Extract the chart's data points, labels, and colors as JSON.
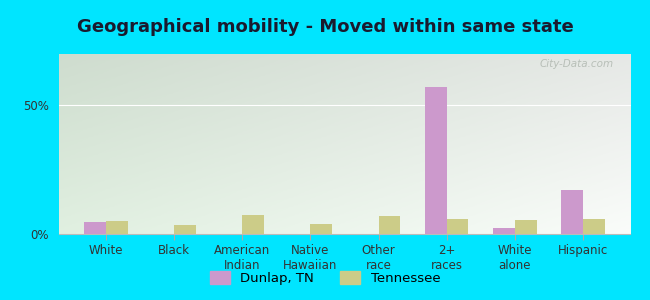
{
  "title": "Geographical mobility - Moved within same state",
  "categories": [
    "White",
    "Black",
    "American\nIndian",
    "Native\nHawaiian",
    "Other\nrace",
    "2+\nraces",
    "White\nalone",
    "Hispanic"
  ],
  "dunlap_values": [
    4.5,
    0.0,
    0.0,
    0.0,
    0.0,
    57.0,
    2.5,
    17.0
  ],
  "tennessee_values": [
    5.0,
    3.5,
    7.5,
    4.0,
    7.0,
    6.0,
    5.5,
    6.0
  ],
  "dunlap_color": "#cc99cc",
  "tennessee_color": "#cccc88",
  "outer_bg": "#00e5ff",
  "plot_bg": "#e8f2e0",
  "ylim": [
    0,
    70
  ],
  "yticks": [
    0,
    50
  ],
  "ytick_labels": [
    "0%",
    "50%"
  ],
  "bar_width": 0.32,
  "legend_dunlap": "Dunlap, TN",
  "legend_tennessee": "Tennessee",
  "title_fontsize": 13,
  "tick_fontsize": 8.5,
  "watermark": "City-Data.com"
}
